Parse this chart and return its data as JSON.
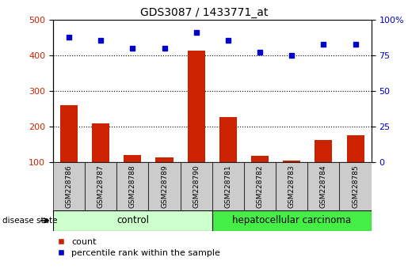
{
  "title": "GDS3087 / 1433771_at",
  "samples": [
    "GSM228786",
    "GSM228787",
    "GSM228788",
    "GSM228789",
    "GSM228790",
    "GSM228781",
    "GSM228782",
    "GSM228783",
    "GSM228784",
    "GSM228785"
  ],
  "counts": [
    260,
    210,
    120,
    115,
    413,
    227,
    118,
    105,
    162,
    177
  ],
  "percentile_left": [
    450,
    443,
    420,
    419,
    465,
    443,
    408,
    400,
    430,
    430
  ],
  "ylim_left": [
    100,
    500
  ],
  "ylim_right": [
    0,
    100
  ],
  "yticks_left": [
    100,
    200,
    300,
    400,
    500
  ],
  "yticks_right": [
    0,
    25,
    50,
    75,
    100
  ],
  "ytick_labels_right": [
    "0",
    "25",
    "50",
    "75",
    "100%"
  ],
  "bar_color": "#cc2200",
  "dot_color": "#0000cc",
  "control_n": 5,
  "carcinoma_n": 5,
  "control_label": "control",
  "carcinoma_label": "hepatocellular carcinoma",
  "disease_state_label": "disease state",
  "legend_count": "count",
  "legend_percentile": "percentile rank within the sample",
  "control_color": "#ccffcc",
  "carcinoma_color": "#44ee44",
  "tick_bg_color": "#cccccc",
  "bar_bottom": 100,
  "fig_bg": "#ffffff"
}
